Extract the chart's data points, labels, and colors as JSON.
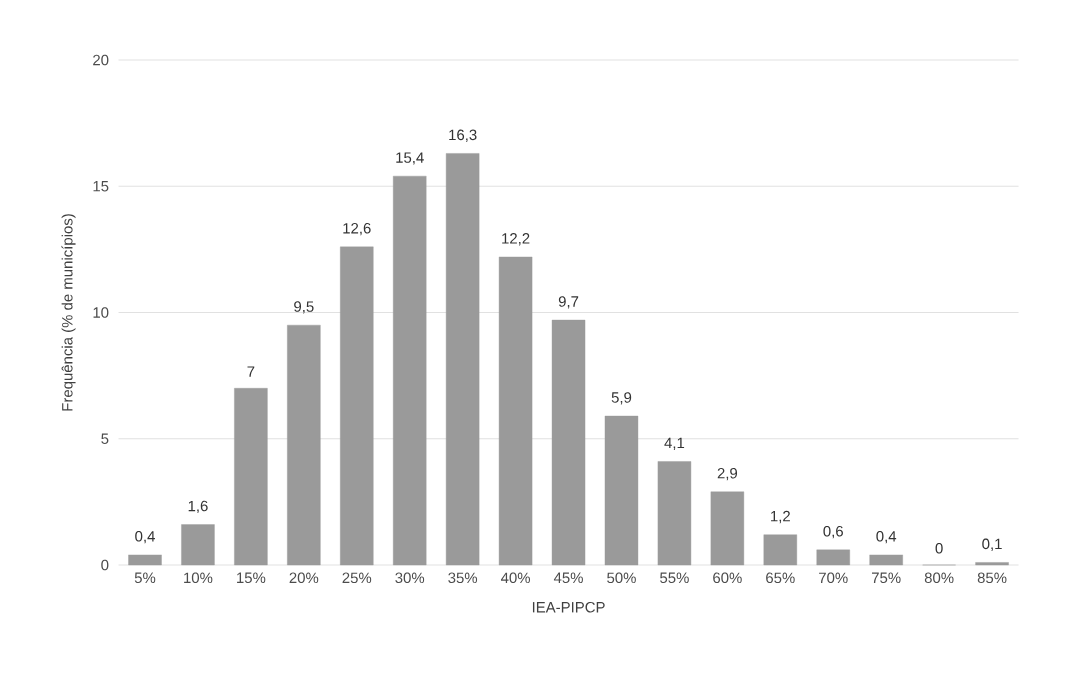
{
  "chart_data": {
    "type": "bar",
    "xlabel": "IEA-PIPCP",
    "ylabel": "Frequência (% de municípios)",
    "categories": [
      "5%",
      "10%",
      "15%",
      "20%",
      "25%",
      "30%",
      "35%",
      "40%",
      "45%",
      "50%",
      "55%",
      "60%",
      "65%",
      "70%",
      "75%",
      "80%",
      "85%"
    ],
    "values": [
      0.4,
      1.6,
      7,
      9.5,
      12.6,
      15.4,
      16.3,
      12.2,
      9.7,
      5.9,
      4.1,
      2.9,
      1.2,
      0.6,
      0.4,
      0,
      0.1
    ],
    "value_labels": [
      "0,4",
      "1,6",
      "7",
      "9,5",
      "12,6",
      "15,4",
      "16,3",
      "12,2",
      "9,7",
      "5,9",
      "4,1",
      "2,9",
      "1,2",
      "0,6",
      "0,4",
      "0",
      "0,1"
    ],
    "color": "#9a9a9a",
    "ylim": [
      0,
      20
    ],
    "yticks": [
      0,
      5,
      10,
      15,
      20
    ],
    "grid": "y"
  }
}
